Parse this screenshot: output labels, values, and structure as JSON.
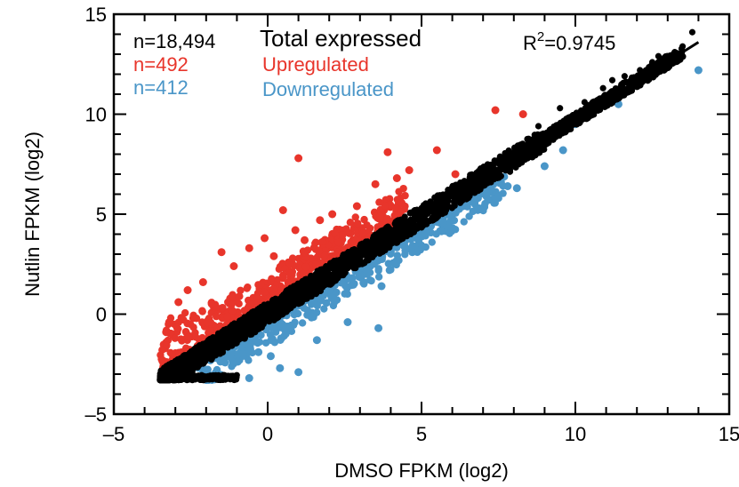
{
  "chart_data": {
    "type": "scatter",
    "title": "",
    "xlabel": "DMSO FPKM (log2)",
    "ylabel": "Nutlin FPKM (log2)",
    "xlim": [
      -5,
      15
    ],
    "ylim": [
      -5,
      15
    ],
    "xticks": [
      -5,
      0,
      5,
      10,
      15
    ],
    "yticks": [
      -5,
      0,
      5,
      10,
      15
    ],
    "xtick_labels": [
      "–5",
      "0",
      "5",
      "10",
      "15"
    ],
    "ytick_labels": [
      "–5",
      "0",
      "5",
      "10",
      "15"
    ],
    "grid": false,
    "legend_position": "top",
    "annotations": {
      "r2_label": "R",
      "r2_superscript": "2",
      "r2_value": "=0.9745"
    },
    "fit_line": {
      "x": [
        -3.5,
        14.0
      ],
      "y": [
        -3.35,
        13.6
      ]
    },
    "colors": {
      "total": "#000000",
      "up": "#e8352b",
      "down": "#4a96c8"
    },
    "series": [
      {
        "name": "Total expressed",
        "count_label": "n=18,494",
        "color": "#000000",
        "band": {
          "x_min": -3.5,
          "x_max": 13.5,
          "half_width": 0.55
        },
        "outlier_points": [
          {
            "x": 11.2,
            "y": 11.7
          },
          {
            "x": 11.6,
            "y": 11.9
          },
          {
            "x": 12.1,
            "y": 12.2
          },
          {
            "x": 12.5,
            "y": 12.6
          },
          {
            "x": 12.7,
            "y": 12.9
          },
          {
            "x": 13.8,
            "y": 14.1
          },
          {
            "x": 10.9,
            "y": 11.3
          },
          {
            "x": 9.5,
            "y": 10.3
          },
          {
            "x": 8.8,
            "y": 9.4
          },
          {
            "x": 10.3,
            "y": 10.6
          },
          {
            "x": 9.1,
            "y": 8.9
          }
        ]
      },
      {
        "name": "Upregulated",
        "count_label": "n=492",
        "color": "#e8352b",
        "points": [
          {
            "x": 7.4,
            "y": 10.2
          },
          {
            "x": 8.3,
            "y": 10.0
          },
          {
            "x": 3.9,
            "y": 8.1
          },
          {
            "x": 5.5,
            "y": 8.2
          },
          {
            "x": 1.0,
            "y": 7.8
          },
          {
            "x": 4.6,
            "y": 7.2
          },
          {
            "x": 4.2,
            "y": 6.8
          },
          {
            "x": 3.5,
            "y": 6.5
          },
          {
            "x": 0.5,
            "y": 5.2
          },
          {
            "x": 2.1,
            "y": 5.0
          },
          {
            "x": 2.9,
            "y": 5.4
          },
          {
            "x": 1.7,
            "y": 4.7
          },
          {
            "x": -1.5,
            "y": 3.1
          },
          {
            "x": -0.6,
            "y": 3.3
          },
          {
            "x": -0.1,
            "y": 3.8
          },
          {
            "x": 1.2,
            "y": 3.7
          },
          {
            "x": 0.9,
            "y": 4.2
          },
          {
            "x": -2.1,
            "y": 1.6
          },
          {
            "x": -2.6,
            "y": 1.2
          },
          {
            "x": -2.9,
            "y": 0.6
          },
          {
            "x": -3.2,
            "y": -0.4
          },
          {
            "x": -3.3,
            "y": -0.9
          },
          {
            "x": -1.1,
            "y": 2.4
          },
          {
            "x": 0.2,
            "y": 2.9
          },
          {
            "x": 2.6,
            "y": 4.1
          },
          {
            "x": 6.1,
            "y": 7.0
          }
        ]
      },
      {
        "name": "Downregulated",
        "count_label": "n=412",
        "color": "#4a96c8",
        "points": [
          {
            "x": 14.0,
            "y": 12.2
          },
          {
            "x": 11.4,
            "y": 10.5
          },
          {
            "x": 10.0,
            "y": 9.5
          },
          {
            "x": 9.6,
            "y": 8.2
          },
          {
            "x": 9.0,
            "y": 7.4
          },
          {
            "x": 8.1,
            "y": 6.3
          },
          {
            "x": 7.4,
            "y": 6.9
          },
          {
            "x": 7.8,
            "y": 6.4
          },
          {
            "x": 6.5,
            "y": 5.8
          },
          {
            "x": 5.3,
            "y": 4.4
          },
          {
            "x": 4.7,
            "y": 3.1
          },
          {
            "x": 3.7,
            "y": 1.4
          },
          {
            "x": 3.6,
            "y": -0.7
          },
          {
            "x": 1.6,
            "y": -1.3
          },
          {
            "x": 2.6,
            "y": -0.4
          },
          {
            "x": 0.1,
            "y": -2.1
          },
          {
            "x": -0.3,
            "y": -1.9
          },
          {
            "x": 1.0,
            "y": -2.9
          },
          {
            "x": -1.6,
            "y": -3.1
          },
          {
            "x": -0.6,
            "y": -3.2
          },
          {
            "x": 0.4,
            "y": -2.7
          }
        ]
      }
    ]
  }
}
